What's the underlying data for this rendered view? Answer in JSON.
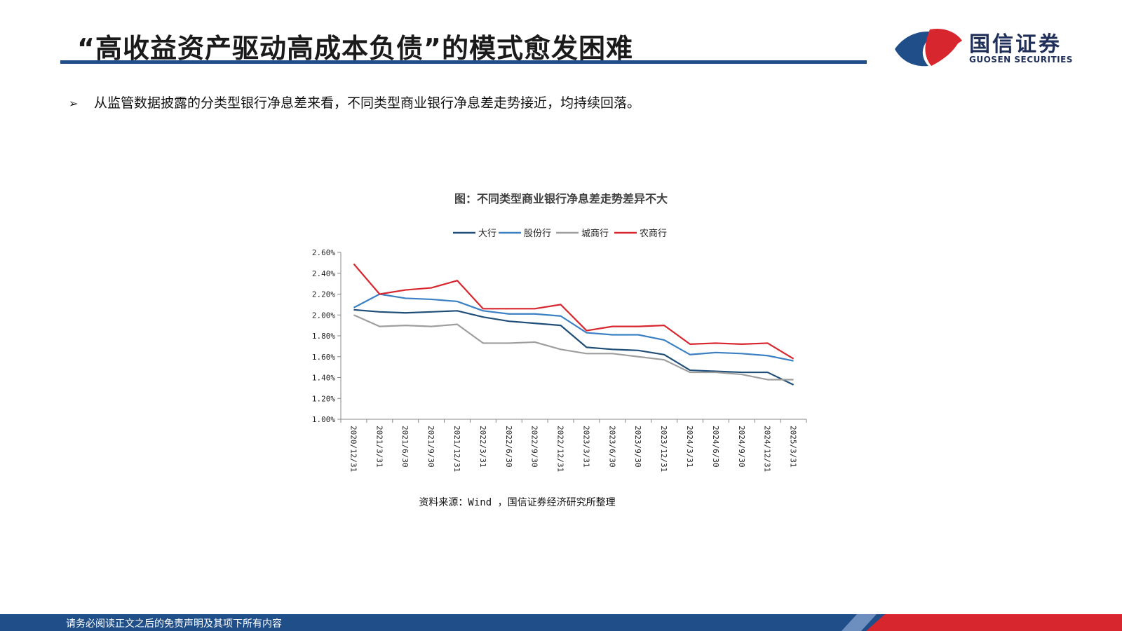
{
  "header": {
    "title": "“高收益资产驱动高成本负债”的模式愈发困难",
    "logo_cn": "国信证券",
    "logo_en": "GUOSEN SECURITIES"
  },
  "bullet": {
    "marker": "➢",
    "text": "从监管数据披露的分类型银行净息差来看，不同类型商业银行净息差走势接近，均持续回落。"
  },
  "source": "资料来源：Wind ，国信证券经济研究所整理",
  "footer": {
    "text": "请务必阅读正文之后的免责声明及其项下所有内容"
  },
  "colors": {
    "brand_blue": "#1f4e89",
    "brand_red": "#d7262e"
  },
  "chart_data": {
    "type": "line",
    "title": "图：不同类型商业银行净息差走势差异不大",
    "categories": [
      "2020/12/31",
      "2021/3/31",
      "2021/6/30",
      "2021/9/30",
      "2021/12/31",
      "2022/3/31",
      "2022/6/30",
      "2022/9/30",
      "2022/12/31",
      "2023/3/31",
      "2023/6/30",
      "2023/9/30",
      "2023/12/31",
      "2024/3/31",
      "2024/6/30",
      "2024/9/30",
      "2024/12/31",
      "2025/3/31"
    ],
    "y_ticks": [
      "1.00%",
      "1.20%",
      "1.40%",
      "1.60%",
      "1.80%",
      "2.00%",
      "2.20%",
      "2.40%",
      "2.60%"
    ],
    "ylim": [
      1.0,
      2.6
    ],
    "legend_position": "top-center",
    "grid": false,
    "series": [
      {
        "name": "大行",
        "color": "#1f4e79",
        "values": [
          2.05,
          2.03,
          2.02,
          2.03,
          2.04,
          1.98,
          1.94,
          1.92,
          1.9,
          1.69,
          1.67,
          1.66,
          1.62,
          1.47,
          1.46,
          1.45,
          1.45,
          1.33
        ]
      },
      {
        "name": "股份行",
        "color": "#3a80c3",
        "values": [
          2.07,
          2.2,
          2.16,
          2.15,
          2.13,
          2.04,
          2.01,
          2.01,
          1.99,
          1.83,
          1.81,
          1.81,
          1.76,
          1.62,
          1.64,
          1.63,
          1.61,
          1.56
        ]
      },
      {
        "name": "城商行",
        "color": "#9e9e9e",
        "values": [
          2.0,
          1.89,
          1.9,
          1.89,
          1.91,
          1.73,
          1.73,
          1.74,
          1.67,
          1.63,
          1.63,
          1.6,
          1.57,
          1.45,
          1.45,
          1.43,
          1.38,
          1.38
        ]
      },
      {
        "name": "农商行",
        "color": "#d7262e",
        "values": [
          2.49,
          2.2,
          2.24,
          2.26,
          2.33,
          2.06,
          2.06,
          2.06,
          2.1,
          1.85,
          1.89,
          1.89,
          1.9,
          1.72,
          1.73,
          1.72,
          1.73,
          1.58
        ]
      }
    ]
  }
}
